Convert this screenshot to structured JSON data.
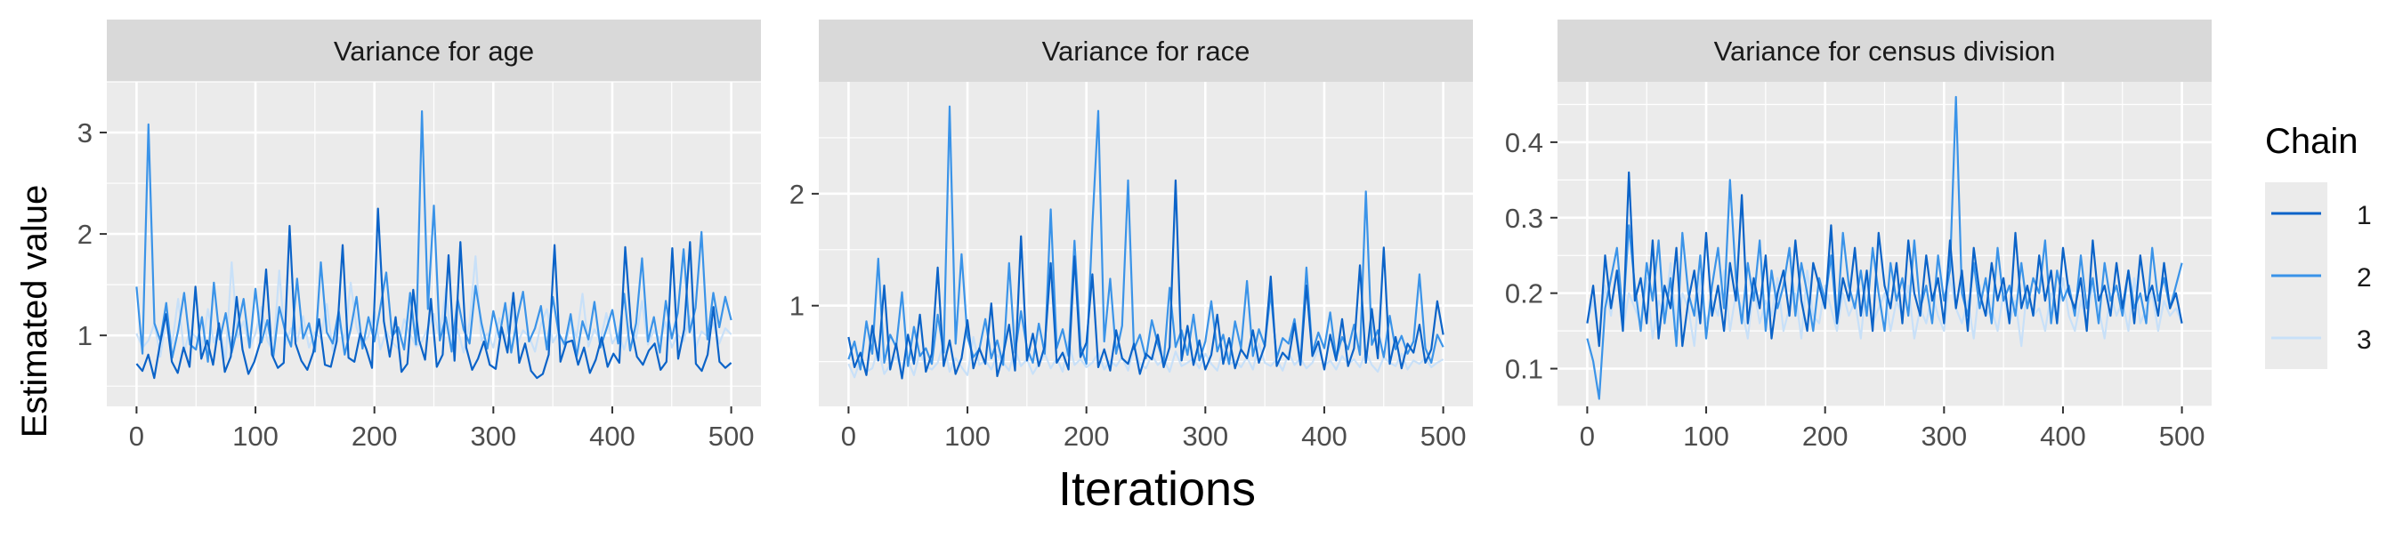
{
  "figure": {
    "y_axis_title": "Estimated value",
    "x_axis_title": "Iterations",
    "legend_title": "Chain",
    "legend_placement": "right"
  },
  "colors": {
    "panel_bg": "#EBEBEB",
    "strip_bg": "#D9D9D9",
    "grid": "#FFFFFF",
    "chain_1": "#0B63C8",
    "chain_2": "#3A93E8",
    "chain_3": "#C8E0F8"
  },
  "chart_data": [
    {
      "type": "line",
      "title": "Variance for age",
      "xlabel": "Iterations",
      "ylabel": "Estimated value",
      "xlim": [
        -25,
        525
      ],
      "ylim": [
        0.3,
        3.5
      ],
      "x_ticks": [
        0,
        100,
        200,
        300,
        400,
        500
      ],
      "y_ticks": [
        1,
        2,
        3
      ],
      "grid": true,
      "series": [
        {
          "name": "1",
          "values": [
            0.72,
            0.65,
            0.81,
            0.58,
            0.92,
            1.21,
            0.74,
            0.63,
            0.88,
            0.69,
            1.48,
            0.77,
            0.95,
            0.71,
            1.12,
            0.64,
            0.79,
            1.38,
            0.86,
            0.62,
            0.74,
            0.93,
            1.65,
            0.81,
            0.68,
            0.73,
            2.08,
            0.92,
            0.75,
            0.66,
            0.83,
            1.16,
            0.71,
            0.69,
            0.94,
            1.89,
            0.78,
            0.74,
            1.02,
            0.87,
            0.68,
            2.25,
            1.14,
            0.79,
            1.18,
            0.64,
            0.72,
            1.45,
            0.95,
            0.76,
            1.36,
            0.69,
            0.81,
            1.79,
            0.75,
            1.92,
            0.88,
            0.66,
            0.77,
            0.94,
            0.71,
            0.67,
            1.08,
            0.83,
            1.42,
            0.73,
            0.92,
            0.65,
            0.58,
            0.62,
            0.81,
            1.89,
            0.74,
            0.93,
            0.95,
            0.71,
            0.88,
            0.63,
            0.76,
            0.98,
            0.69,
            0.82,
            0.73,
            1.87,
            1.08,
            0.79,
            0.71,
            0.85,
            0.92,
            0.66,
            0.74,
            1.86,
            0.77,
            1.06,
            1.92,
            0.72,
            0.65,
            0.81,
            1.28,
            0.74,
            0.68,
            0.73
          ]
        },
        {
          "name": "2",
          "values": [
            1.48,
            0.82,
            3.08,
            1.12,
            0.95,
            1.32,
            0.78,
            1.05,
            1.42,
            0.91,
            0.86,
            1.18,
            0.74,
            1.52,
            0.96,
            1.22,
            0.83,
            1.08,
            1.36,
            0.88,
            1.46,
            0.93,
            1.15,
            0.79,
            1.28,
            1.04,
            0.89,
            1.56,
            0.97,
            1.12,
            0.84,
            1.72,
            1.03,
            0.92,
            1.24,
            0.81,
            1.06,
            1.38,
            0.87,
            1.18,
            0.94,
            1.28,
            1.62,
            0.99,
            1.08,
            0.86,
            1.42,
            0.91,
            3.21,
            1.26,
            2.28,
            0.95,
            1.18,
            0.84,
            1.36,
            1.06,
            0.92,
            1.49,
            1.12,
            0.87,
            1.24,
            0.98,
            1.32,
            0.83,
            1.16,
            1.43,
            0.94,
            1.07,
            1.29,
            0.86,
            1.38,
            1.02,
            0.91,
            1.21,
            0.79,
            1.14,
            0.96,
            1.33,
            0.88,
            1.06,
            1.25,
            0.92,
            1.41,
            0.85,
            1.12,
            1.76,
            0.94,
            1.18,
            0.83,
            1.34,
            0.97,
            1.22,
            1.85,
            1.03,
            1.27,
            2.02,
            0.96,
            1.42,
            1.08,
            1.38,
            1.15
          ]
        },
        {
          "name": "3",
          "values": [
            1.02,
            0.88,
            0.95,
            1.12,
            0.79,
            1.18,
            0.92,
            1.36,
            0.84,
            1.05,
            0.98,
            0.86,
            1.26,
            0.93,
            1.08,
            0.76,
            1.72,
            0.98,
            1.14,
            0.87,
            1.02,
            1.28,
            0.95,
            0.83,
            1.64,
            0.91,
            1.07,
            0.94,
            1.19,
            0.88,
            1.03,
            0.97,
            1.31,
            0.85,
            1.11,
            0.96,
            1.52,
            1.08,
            0.92,
            0.99,
            1.24,
            0.86,
            1.04,
            0.93,
            0.87,
            1.16,
            1.01,
            0.89,
            0.94,
            1.08,
            1.21,
            0.97,
            1.46,
            0.91,
            1.06,
            0.83,
            1.13,
            1.78,
            0.95,
            1.02,
            0.88,
            1.17,
            0.96,
            1.32,
            0.91,
            1.05,
            0.99,
            0.84,
            1.11,
            1.26,
            0.93,
            1.03,
            0.87,
            1.14,
            0.98,
            1.41,
            0.89,
            1.06,
            0.95,
            1.22,
            0.92,
            1.02,
            0.86,
            1.09,
            0.97,
            1.34,
            0.91,
            1.05,
            0.96,
            1.13,
            0.88,
            1.01,
            0.94,
            1.19,
            0.87,
            1.04,
            0.99,
            1.12,
            0.92,
            1.07,
            1.01
          ]
        }
      ]
    },
    {
      "type": "line",
      "title": "Variance for race",
      "xlabel": "Iterations",
      "ylabel": "Estimated value",
      "xlim": [
        -25,
        525
      ],
      "ylim": [
        0.1,
        3.0
      ],
      "x_ticks": [
        0,
        100,
        200,
        300,
        400,
        500
      ],
      "y_ticks": [
        1,
        2
      ],
      "grid": true,
      "series": [
        {
          "name": "1",
          "values": [
            0.72,
            0.45,
            0.58,
            0.38,
            0.82,
            0.51,
            1.18,
            0.43,
            0.66,
            0.35,
            0.74,
            0.48,
            0.92,
            0.41,
            0.57,
            1.34,
            0.46,
            0.69,
            0.39,
            0.53,
            0.87,
            0.44,
            0.62,
            0.48,
            1.02,
            0.37,
            0.56,
            0.83,
            0.42,
            1.62,
            0.51,
            0.75,
            0.46,
            0.64,
            1.38,
            0.49,
            0.58,
            0.43,
            1.44,
            0.54,
            0.67,
            1.28,
            0.45,
            0.61,
            0.42,
            0.78,
            0.53,
            0.48,
            0.66,
            0.39,
            0.57,
            0.52,
            0.74,
            0.45,
            0.63,
            2.12,
            0.51,
            0.82,
            0.47,
            0.69,
            0.43,
            0.56,
            0.92,
            0.48,
            0.71,
            0.44,
            0.61,
            0.53,
            0.78,
            0.49,
            0.64,
            1.26,
            0.46,
            0.58,
            0.52,
            0.84,
            0.47,
            1.18,
            0.55,
            0.68,
            0.43,
            0.74,
            0.51,
            0.88,
            0.46,
            0.62,
            1.36,
            0.49,
            0.97,
            0.53,
            1.52,
            0.48,
            0.72,
            0.44,
            0.66,
            0.58,
            0.83,
            0.49,
            0.61,
            1.04,
            0.74
          ]
        },
        {
          "name": "2",
          "values": [
            0.52,
            0.68,
            0.43,
            0.86,
            0.57,
            1.42,
            0.49,
            0.74,
            0.63,
            1.12,
            0.46,
            0.81,
            0.55,
            0.62,
            0.48,
            0.92,
            0.58,
            2.78,
            0.66,
            1.46,
            0.72,
            0.54,
            0.61,
            0.88,
            0.53,
            0.69,
            0.47,
            1.38,
            0.58,
            0.95,
            0.62,
            0.49,
            0.84,
            0.57,
            1.86,
            0.62,
            0.79,
            0.55,
            1.58,
            0.64,
            0.48,
            1.72,
            2.74,
            0.68,
            1.24,
            0.57,
            0.82,
            2.12,
            0.61,
            0.74,
            0.53,
            0.87,
            0.66,
            0.49,
            1.16,
            0.63,
            0.78,
            0.56,
            0.92,
            0.51,
            0.68,
            1.04,
            0.59,
            0.74,
            0.48,
            0.86,
            0.62,
            1.22,
            0.55,
            0.79,
            0.64,
            1.12,
            0.53,
            0.71,
            0.66,
            0.88,
            0.49,
            1.34,
            0.58,
            0.76,
            0.62,
            0.94,
            0.53,
            0.72,
            0.61,
            0.83,
            0.56,
            2.02,
            0.65,
            0.78,
            0.54,
            0.91,
            0.61,
            0.73,
            0.57,
            0.68,
            1.28,
            0.62,
            0.49,
            0.74,
            0.63
          ]
        },
        {
          "name": "3",
          "values": [
            0.48,
            0.36,
            0.52,
            0.41,
            0.44,
            0.62,
            0.39,
            0.47,
            0.55,
            0.42,
            0.51,
            0.38,
            0.58,
            0.46,
            0.43,
            0.49,
            0.67,
            0.41,
            0.53,
            0.45,
            0.38,
            0.72,
            0.47,
            0.51,
            0.43,
            0.56,
            0.49,
            0.42,
            0.61,
            0.46,
            0.52,
            0.39,
            0.48,
            0.57,
            0.44,
            0.53,
            0.41,
            0.68,
            0.47,
            0.52,
            0.45,
            0.49,
            0.58,
            0.43,
            0.51,
            0.46,
            0.54,
            0.42,
            0.63,
            0.48,
            0.44,
            0.56,
            0.47,
            0.52,
            0.41,
            0.59,
            0.46,
            0.49,
            0.53,
            0.44,
            0.57,
            0.48,
            0.42,
            0.61,
            0.47,
            0.51,
            0.45,
            0.54,
            0.43,
            0.66,
            0.49,
            0.46,
            0.52,
            0.42,
            0.58,
            0.47,
            0.53,
            0.44,
            0.49,
            0.62,
            0.46,
            0.51,
            0.43,
            0.55,
            0.48,
            0.52,
            0.45,
            0.59,
            0.47,
            0.41,
            0.54,
            0.49,
            0.46,
            0.57,
            0.43,
            0.51,
            0.48,
            0.53,
            0.45,
            0.49,
            0.52
          ]
        }
      ]
    },
    {
      "type": "line",
      "title": "Variance for census division",
      "xlabel": "Iterations",
      "ylabel": "Estimated value",
      "xlim": [
        -25,
        525
      ],
      "ylim": [
        0.05,
        0.48
      ],
      "x_ticks": [
        0,
        100,
        200,
        300,
        400,
        500
      ],
      "y_ticks": [
        0.1,
        0.2,
        0.3,
        0.4
      ],
      "grid": true,
      "series": [
        {
          "name": "1",
          "values": [
            0.16,
            0.21,
            0.13,
            0.25,
            0.18,
            0.23,
            0.15,
            0.36,
            0.19,
            0.22,
            0.16,
            0.27,
            0.14,
            0.21,
            0.18,
            0.26,
            0.13,
            0.19,
            0.23,
            0.16,
            0.28,
            0.17,
            0.21,
            0.15,
            0.24,
            0.19,
            0.33,
            0.16,
            0.22,
            0.18,
            0.25,
            0.14,
            0.2,
            0.23,
            0.17,
            0.27,
            0.19,
            0.15,
            0.24,
            0.21,
            0.18,
            0.29,
            0.16,
            0.22,
            0.19,
            0.26,
            0.17,
            0.23,
            0.15,
            0.28,
            0.21,
            0.18,
            0.24,
            0.16,
            0.27,
            0.2,
            0.17,
            0.25,
            0.19,
            0.22,
            0.16,
            0.27,
            0.18,
            0.23,
            0.15,
            0.26,
            0.2,
            0.17,
            0.24,
            0.19,
            0.22,
            0.16,
            0.28,
            0.18,
            0.21,
            0.17,
            0.25,
            0.19,
            0.23,
            0.16,
            0.26,
            0.2,
            0.18,
            0.22,
            0.15,
            0.27,
            0.19,
            0.21,
            0.17,
            0.24,
            0.18,
            0.23,
            0.16,
            0.25,
            0.19,
            0.21,
            0.17,
            0.24,
            0.18,
            0.2,
            0.16
          ]
        },
        {
          "name": "2",
          "values": [
            0.14,
            0.11,
            0.06,
            0.18,
            0.22,
            0.26,
            0.17,
            0.29,
            0.21,
            0.15,
            0.24,
            0.19,
            0.27,
            0.16,
            0.22,
            0.13,
            0.28,
            0.2,
            0.17,
            0.25,
            0.14,
            0.21,
            0.26,
            0.18,
            0.35,
            0.22,
            0.16,
            0.24,
            0.19,
            0.27,
            0.15,
            0.23,
            0.18,
            0.21,
            0.26,
            0.17,
            0.24,
            0.2,
            0.15,
            0.22,
            0.19,
            0.25,
            0.16,
            0.28,
            0.21,
            0.18,
            0.23,
            0.17,
            0.26,
            0.2,
            0.15,
            0.24,
            0.19,
            0.22,
            0.17,
            0.27,
            0.18,
            0.21,
            0.16,
            0.25,
            0.19,
            0.23,
            0.46,
            0.2,
            0.17,
            0.24,
            0.18,
            0.22,
            0.16,
            0.26,
            0.19,
            0.21,
            0.17,
            0.24,
            0.18,
            0.22,
            0.2,
            0.27,
            0.16,
            0.23,
            0.19,
            0.21,
            0.17,
            0.25,
            0.18,
            0.22,
            0.16,
            0.24,
            0.19,
            0.21,
            0.17,
            0.23,
            0.18,
            0.2,
            0.16,
            0.26,
            0.19,
            0.22,
            0.18,
            0.21,
            0.24
          ]
        },
        {
          "name": "3",
          "values": [
            0.16,
            0.19,
            0.14,
            0.21,
            0.17,
            0.23,
            0.15,
            0.2,
            0.18,
            0.16,
            0.22,
            0.14,
            0.19,
            0.17,
            0.24,
            0.15,
            0.2,
            0.18,
            0.13,
            0.22,
            0.16,
            0.19,
            0.17,
            0.23,
            0.15,
            0.2,
            0.18,
            0.14,
            0.21,
            0.16,
            0.19,
            0.17,
            0.22,
            0.15,
            0.18,
            0.2,
            0.14,
            0.23,
            0.17,
            0.16,
            0.21,
            0.18,
            0.15,
            0.2,
            0.17,
            0.19,
            0.14,
            0.22,
            0.16,
            0.18,
            0.2,
            0.15,
            0.19,
            0.17,
            0.21,
            0.14,
            0.18,
            0.16,
            0.2,
            0.17,
            0.15,
            0.22,
            0.18,
            0.16,
            0.19,
            0.14,
            0.21,
            0.17,
            0.18,
            0.15,
            0.2,
            0.16,
            0.19,
            0.13,
            0.21,
            0.17,
            0.18,
            0.15,
            0.2,
            0.16,
            0.22,
            0.17,
            0.15,
            0.19,
            0.16,
            0.21,
            0.18,
            0.14,
            0.2,
            0.17,
            0.19,
            0.15,
            0.22,
            0.16,
            0.18,
            0.2,
            0.15,
            0.19,
            0.17,
            0.18,
            0.16
          ]
        }
      ]
    }
  ]
}
